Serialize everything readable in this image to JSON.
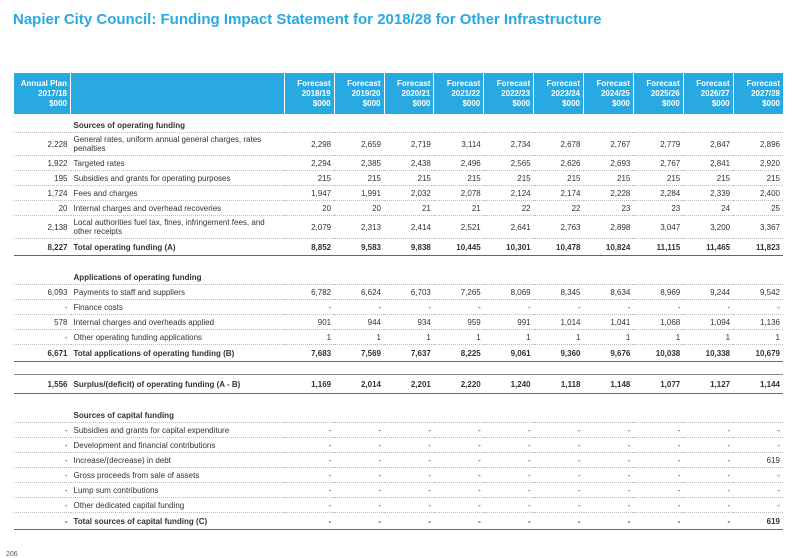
{
  "title": "Napier City Council: Funding Impact Statement for 2018/28 for Other Infrastructure",
  "page_number": "206",
  "headers": [
    [
      "Annual Plan",
      "2017/18",
      "$000"
    ],
    [
      "Forecast",
      "2018/19",
      "$000"
    ],
    [
      "Forecast",
      "2019/20",
      "$000"
    ],
    [
      "Forecast",
      "2020/21",
      "$000"
    ],
    [
      "Forecast",
      "2021/22",
      "$000"
    ],
    [
      "Forecast",
      "2022/23",
      "$000"
    ],
    [
      "Forecast",
      "2023/24",
      "$000"
    ],
    [
      "Forecast",
      "2024/25",
      "$000"
    ],
    [
      "Forecast",
      "2025/26",
      "$000"
    ],
    [
      "Forecast",
      "2026/27",
      "$000"
    ],
    [
      "Forecast",
      "2027/28",
      "$000"
    ]
  ],
  "rows": [
    {
      "kind": "heading",
      "label": "Sources of operating funding",
      "values": [
        "",
        "",
        "",
        "",
        "",
        "",
        "",
        "",
        "",
        "",
        ""
      ]
    },
    {
      "kind": "tall",
      "label": "General rates, uniform annual general charges, rates penalties",
      "values": [
        "2,228",
        "2,298",
        "2,659",
        "2,719",
        "3,114",
        "2,734",
        "2,678",
        "2,767",
        "2,779",
        "2,847",
        "2,896"
      ]
    },
    {
      "kind": "row",
      "label": "Targeted rates",
      "values": [
        "1,922",
        "2,294",
        "2,385",
        "2,438",
        "2,496",
        "2,565",
        "2,626",
        "2,693",
        "2,767",
        "2,841",
        "2,920"
      ]
    },
    {
      "kind": "row",
      "label": "Subsidies and grants for operating purposes",
      "values": [
        "195",
        "215",
        "215",
        "215",
        "215",
        "215",
        "215",
        "215",
        "215",
        "215",
        "215"
      ]
    },
    {
      "kind": "row",
      "label": "Fees and charges",
      "values": [
        "1,724",
        "1,947",
        "1,991",
        "2,032",
        "2,078",
        "2,124",
        "2,174",
        "2,228",
        "2,284",
        "2,339",
        "2,400"
      ]
    },
    {
      "kind": "row",
      "label": "Internal charges and overhead recoveries",
      "values": [
        "20",
        "20",
        "20",
        "21",
        "21",
        "22",
        "22",
        "23",
        "23",
        "24",
        "25"
      ]
    },
    {
      "kind": "tall",
      "label": "Local authorities fuel tax, fines, infringement fees, and other receipts",
      "values": [
        "2,138",
        "2,079",
        "2,313",
        "2,414",
        "2,521",
        "2,641",
        "2,763",
        "2,898",
        "3,047",
        "3,200",
        "3,367"
      ]
    },
    {
      "kind": "total",
      "label": "Total operating funding (A)",
      "values": [
        "8,227",
        "8,852",
        "9,583",
        "9,838",
        "10,445",
        "10,301",
        "10,478",
        "10,824",
        "11,115",
        "11,465",
        "11,823"
      ]
    },
    {
      "kind": "gap",
      "label": "",
      "values": [
        "",
        "",
        "",
        "",
        "",
        "",
        "",
        "",
        "",
        "",
        ""
      ]
    },
    {
      "kind": "heading",
      "label": "Applications of operating funding",
      "values": [
        "",
        "",
        "",
        "",
        "",
        "",
        "",
        "",
        "",
        "",
        ""
      ]
    },
    {
      "kind": "row",
      "label": "Payments to staff and suppliers",
      "values": [
        "6,093",
        "6,782",
        "6,624",
        "6,703",
        "7,265",
        "8,069",
        "8,345",
        "8,634",
        "8,969",
        "9,244",
        "9,542"
      ]
    },
    {
      "kind": "row",
      "label": "Finance costs",
      "values": [
        "-",
        "-",
        "-",
        "-",
        "-",
        "-",
        "-",
        "-",
        "-",
        "-",
        "-"
      ]
    },
    {
      "kind": "row",
      "label": "Internal charges and overheads applied",
      "values": [
        "578",
        "901",
        "944",
        "934",
        "959",
        "991",
        "1,014",
        "1,041",
        "1,068",
        "1,094",
        "1,136"
      ]
    },
    {
      "kind": "row",
      "label": "Other operating funding applications",
      "values": [
        "-",
        "1",
        "1",
        "1",
        "1",
        "1",
        "1",
        "1",
        "1",
        "1",
        "1"
      ]
    },
    {
      "kind": "total",
      "label": "Total applications of operating funding (B)",
      "values": [
        "6,671",
        "7,683",
        "7,569",
        "7,637",
        "8,225",
        "9,061",
        "9,360",
        "9,676",
        "10,038",
        "10,338",
        "10,679"
      ]
    },
    {
      "kind": "spacer",
      "label": "",
      "values": [
        "",
        "",
        "",
        "",
        "",
        "",
        "",
        "",
        "",
        "",
        ""
      ]
    },
    {
      "kind": "surplus",
      "label": "Surplus/(deficit) of operating funding (A - B)",
      "values": [
        "1,556",
        "1,169",
        "2,014",
        "2,201",
        "2,220",
        "1,240",
        "1,118",
        "1,148",
        "1,077",
        "1,127",
        "1,144"
      ]
    },
    {
      "kind": "gap",
      "label": "",
      "values": [
        "",
        "",
        "",
        "",
        "",
        "",
        "",
        "",
        "",
        "",
        ""
      ]
    },
    {
      "kind": "heading",
      "label": "Sources of capital funding",
      "values": [
        "",
        "",
        "",
        "",
        "",
        "",
        "",
        "",
        "",
        "",
        ""
      ]
    },
    {
      "kind": "row",
      "label": "Subsidies and grants for capital expenditure",
      "values": [
        "-",
        "-",
        "-",
        "-",
        "-",
        "-",
        "-",
        "-",
        "-",
        "-",
        "-"
      ]
    },
    {
      "kind": "row",
      "label": "Development and financial contributions",
      "values": [
        "-",
        "-",
        "-",
        "-",
        "-",
        "-",
        "-",
        "-",
        "-",
        "-",
        "-"
      ]
    },
    {
      "kind": "row",
      "label": "Increase/(decrease) in debt",
      "values": [
        "-",
        "-",
        "-",
        "-",
        "-",
        "-",
        "-",
        "-",
        "-",
        "-",
        "619"
      ]
    },
    {
      "kind": "row",
      "label": "Gross proceeds from sale of assets",
      "values": [
        "-",
        "-",
        "-",
        "-",
        "-",
        "-",
        "-",
        "-",
        "-",
        "-",
        "-"
      ]
    },
    {
      "kind": "row",
      "label": "Lump sum contributions",
      "values": [
        "-",
        "-",
        "-",
        "-",
        "-",
        "-",
        "-",
        "-",
        "-",
        "-",
        "-"
      ]
    },
    {
      "kind": "row",
      "label": "Other dedicated capital funding",
      "values": [
        "-",
        "-",
        "-",
        "-",
        "-",
        "-",
        "-",
        "-",
        "-",
        "-",
        "-"
      ]
    },
    {
      "kind": "total",
      "label": "Total sources of capital funding (C)",
      "values": [
        "-",
        "-",
        "-",
        "-",
        "-",
        "-",
        "-",
        "-",
        "-",
        "-",
        "619"
      ]
    }
  ]
}
